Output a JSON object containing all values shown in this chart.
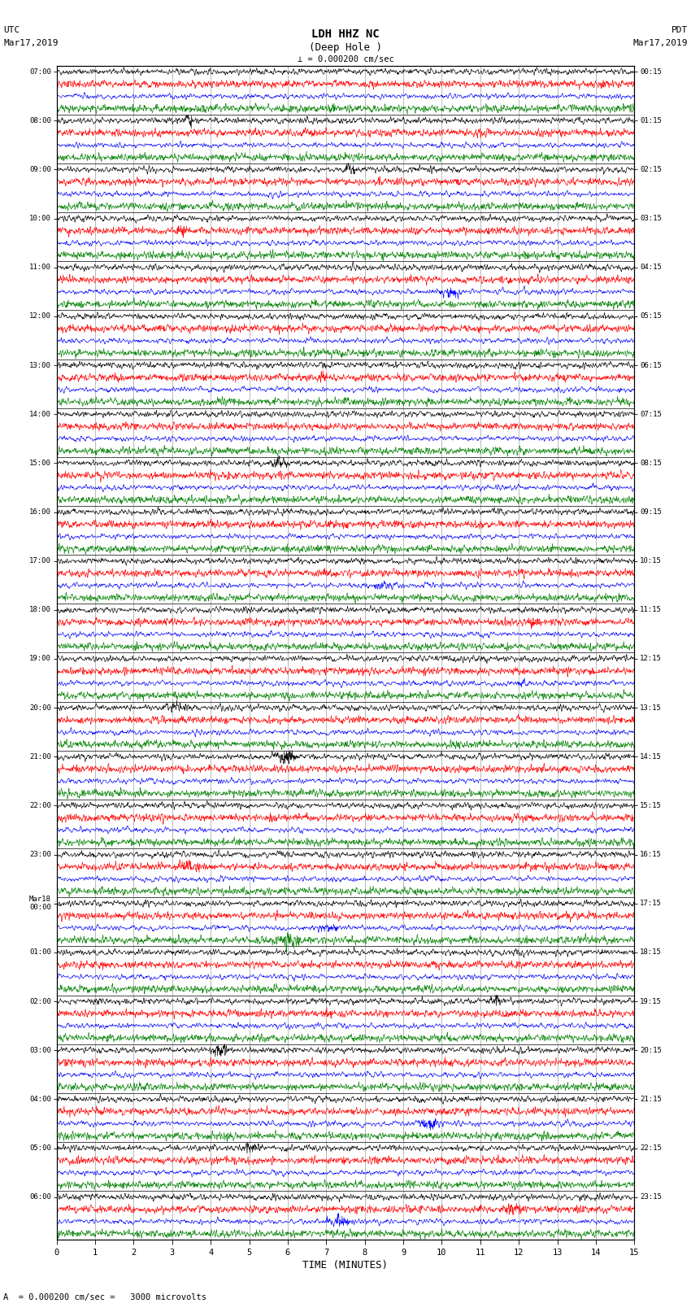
{
  "title_line1": "LDH HHZ NC",
  "title_line2": "(Deep Hole )",
  "scale_label": "= 0.000200 cm/sec",
  "footer_label": "A  = 0.000200 cm/sec =   3000 microvolts",
  "xlabel": "TIME (MINUTES)",
  "utc_header": "UTC",
  "utc_date": "Mar17,2019",
  "pdt_header": "PDT",
  "pdt_date": "Mar17,2019",
  "utc_times": [
    "07:00",
    "08:00",
    "09:00",
    "10:00",
    "11:00",
    "12:00",
    "13:00",
    "14:00",
    "15:00",
    "16:00",
    "17:00",
    "18:00",
    "19:00",
    "20:00",
    "21:00",
    "22:00",
    "23:00",
    "Mar18\n00:00",
    "01:00",
    "02:00",
    "03:00",
    "04:00",
    "05:00",
    "06:00"
  ],
  "pdt_times": [
    "00:15",
    "01:15",
    "02:15",
    "03:15",
    "04:15",
    "05:15",
    "06:15",
    "07:15",
    "08:15",
    "09:15",
    "10:15",
    "11:15",
    "12:15",
    "13:15",
    "14:15",
    "15:15",
    "16:15",
    "17:15",
    "18:15",
    "19:15",
    "20:15",
    "21:15",
    "22:15",
    "23:15"
  ],
  "n_hours": 24,
  "n_traces_per_hour": 4,
  "trace_colors": [
    "black",
    "red",
    "blue",
    "green"
  ],
  "fig_width": 8.5,
  "fig_height": 16.13,
  "dpi": 100,
  "bg_color": "white",
  "xlim": [
    0,
    15
  ],
  "xticks": [
    0,
    1,
    2,
    3,
    4,
    5,
    6,
    7,
    8,
    9,
    10,
    11,
    12,
    13,
    14,
    15
  ],
  "noise_seed": 42,
  "trace_amplitude": 0.32,
  "n_points": 1800,
  "grid_color": "#888888",
  "grid_linewidth": 0.4,
  "trace_linewidth": 0.45
}
